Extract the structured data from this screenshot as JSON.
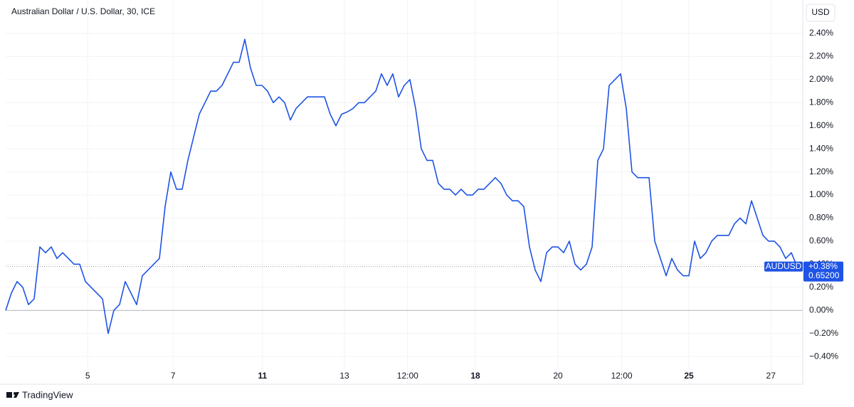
{
  "chart_data": {
    "type": "line",
    "title": "Australian Dollar / U.S. Dollar, 30, ICE",
    "currency": "USD",
    "brand": "TradingView",
    "x": [
      0,
      1,
      2,
      3,
      4,
      5,
      6,
      7,
      8,
      9,
      10,
      11,
      12,
      13,
      14,
      15,
      16,
      17,
      18,
      19,
      20,
      21,
      22,
      23,
      24,
      25,
      26,
      27,
      28,
      29,
      30,
      31,
      32,
      33,
      34,
      35,
      36,
      37,
      38,
      39,
      40,
      41,
      42,
      43,
      44,
      45,
      46,
      47,
      48,
      49,
      50,
      51,
      52,
      53,
      54,
      55,
      56,
      57,
      58,
      59,
      60,
      61,
      62,
      63,
      64,
      65,
      66,
      67,
      68,
      69,
      70,
      71,
      72,
      73,
      74,
      75,
      76,
      77,
      78,
      79,
      80,
      81,
      82,
      83,
      84,
      85,
      86,
      87,
      88,
      89,
      90,
      91,
      92,
      93,
      94,
      95,
      96,
      97,
      98,
      99,
      100,
      101,
      102,
      103,
      104,
      105,
      106,
      107,
      108,
      109,
      110,
      111,
      112,
      113,
      114,
      115,
      116,
      117,
      118,
      119,
      120,
      121,
      122,
      123,
      124,
      125,
      126,
      127,
      128,
      129,
      130,
      131,
      132,
      133,
      134,
      135,
      136,
      137,
      138,
      139
    ],
    "series": [
      {
        "name": "AUDUSD",
        "color": "#1e53e5",
        "values": [
          0.0,
          0.15,
          0.25,
          0.2,
          0.05,
          0.1,
          0.55,
          0.5,
          0.55,
          0.45,
          0.5,
          0.45,
          0.4,
          0.4,
          0.25,
          0.2,
          0.15,
          0.1,
          -0.2,
          0.0,
          0.05,
          0.25,
          0.15,
          0.05,
          0.3,
          0.35,
          0.4,
          0.45,
          0.9,
          1.2,
          1.05,
          1.05,
          1.3,
          1.5,
          1.7,
          1.8,
          1.9,
          1.9,
          1.95,
          2.05,
          2.15,
          2.15,
          2.35,
          2.1,
          1.95,
          1.95,
          1.9,
          1.8,
          1.85,
          1.8,
          1.65,
          1.75,
          1.8,
          1.85,
          1.85,
          1.85,
          1.85,
          1.7,
          1.6,
          1.7,
          1.72,
          1.75,
          1.8,
          1.8,
          1.85,
          1.9,
          2.05,
          1.95,
          2.05,
          1.85,
          1.95,
          2.0,
          1.75,
          1.4,
          1.3,
          1.3,
          1.1,
          1.05,
          1.05,
          1.0,
          1.05,
          1.0,
          1.0,
          1.05,
          1.05,
          1.1,
          1.15,
          1.1,
          1.0,
          0.95,
          0.95,
          0.9,
          0.55,
          0.35,
          0.25,
          0.5,
          0.55,
          0.55,
          0.5,
          0.6,
          0.4,
          0.35,
          0.4,
          0.55,
          1.3,
          1.4,
          1.95,
          2.0,
          2.05,
          1.75,
          1.2,
          1.15,
          1.15,
          1.15,
          0.6,
          0.45,
          0.3,
          0.45,
          0.35,
          0.3,
          0.3,
          0.6,
          0.45,
          0.5,
          0.6,
          0.65,
          0.65,
          0.65,
          0.75,
          0.8,
          0.75,
          0.95,
          0.8,
          0.65,
          0.6,
          0.6,
          0.55,
          0.45,
          0.5,
          0.38
        ]
      }
    ],
    "last": {
      "name": "AUDUSD",
      "value": 0.38,
      "label": "+0.38%",
      "price": {
        "value": 0.652,
        "label": "0.65200"
      }
    },
    "baseline": 0,
    "xlim": [
      0,
      140
    ],
    "ylim": [
      -0.64,
      2.69
    ],
    "xticks": [
      {
        "value": 14.4,
        "label": "5"
      },
      {
        "value": 29.4,
        "label": "7"
      },
      {
        "value": 45.1,
        "label": "11"
      },
      {
        "value": 59.5,
        "label": "13"
      },
      {
        "value": 70.6,
        "label": "12:00"
      },
      {
        "value": 82.5,
        "label": "18"
      },
      {
        "value": 97,
        "label": "20"
      },
      {
        "value": 108.2,
        "label": "12:00"
      },
      {
        "value": 120,
        "label": "25"
      },
      {
        "value": 134.4,
        "label": "27"
      }
    ],
    "yticks": [
      {
        "value": -0.4,
        "label": "−0.40%"
      },
      {
        "value": -0.2,
        "label": "−0.20%"
      },
      {
        "value": 0,
        "label": "0.00%"
      },
      {
        "value": 0.2,
        "label": "0.20%"
      },
      {
        "value": 0.4,
        "label": "0.40%"
      },
      {
        "value": 0.6,
        "label": "0.60%"
      },
      {
        "value": 0.8,
        "label": "0.80%"
      },
      {
        "value": 1,
        "label": "1.00%"
      },
      {
        "value": 1.2,
        "label": "1.20%"
      },
      {
        "value": 1.4,
        "label": "1.40%"
      },
      {
        "value": 1.6,
        "label": "1.60%"
      },
      {
        "value": 1.8,
        "label": "1.80%"
      },
      {
        "value": 2,
        "label": "2.00%"
      },
      {
        "value": 2.2,
        "label": "2.20%"
      },
      {
        "value": 2.4,
        "label": "2.40%"
      }
    ],
    "grid": true
  }
}
